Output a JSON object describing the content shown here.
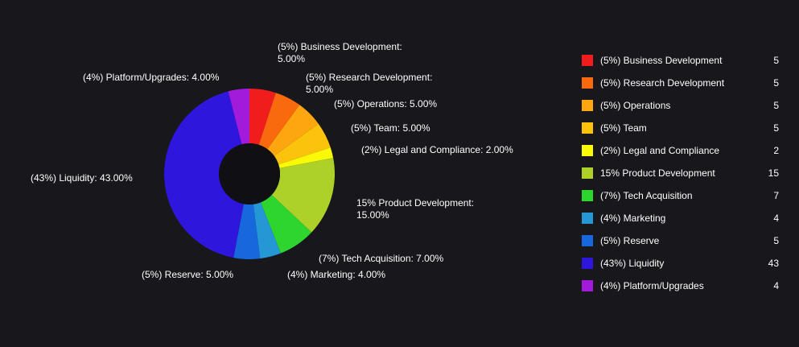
{
  "chart_data": {
    "type": "pie",
    "subtype": "donut",
    "title": "",
    "legend_position": "right",
    "background": "#17171c",
    "hole_color": "#101014",
    "text_color": "#ffffff",
    "categories": [
      "Business Development",
      "Research Development",
      "Operations",
      "Team",
      "Legal and Compliance",
      "Product Development",
      "Tech Acquisition",
      "Marketing",
      "Reserve",
      "Liquidity",
      "Platform/Upgrades"
    ],
    "values": [
      5,
      5,
      5,
      5,
      2,
      15,
      7,
      4,
      5,
      43,
      4
    ],
    "slices": [
      {
        "name": "Business Development",
        "value": 5,
        "color": "#f11d1d",
        "callout": "(5%) Business Development:\n5.00%",
        "legend_label": "(5%) Business Development",
        "legend_value": "5"
      },
      {
        "name": "Research Development",
        "value": 5,
        "color": "#f9690e",
        "callout": "(5%) Research Development:\n5.00%",
        "legend_label": "(5%) Research Development",
        "legend_value": "5"
      },
      {
        "name": "Operations",
        "value": 5,
        "color": "#fea610",
        "callout": "(5%) Operations: 5.00%",
        "legend_label": "(5%) Operations",
        "legend_value": "5"
      },
      {
        "name": "Team",
        "value": 5,
        "color": "#fcc30c",
        "callout": "(5%) Team: 5.00%",
        "legend_label": "(5%) Team",
        "legend_value": "5"
      },
      {
        "name": "Legal and Compliance",
        "value": 2,
        "color": "#f9f908",
        "callout": "(2%) Legal and Compliance: 2.00%",
        "legend_label": "(2%) Legal and Compliance",
        "legend_value": "2"
      },
      {
        "name": "Product Development",
        "value": 15,
        "color": "#aed129",
        "callout": "15% Product Development:\n15.00%",
        "legend_label": "15% Product Development",
        "legend_value": "15"
      },
      {
        "name": "Tech Acquisition",
        "value": 7,
        "color": "#2fd52f",
        "callout": "(7%) Tech Acquisition: 7.00%",
        "legend_label": "(7%) Tech Acquisition",
        "legend_value": "7"
      },
      {
        "name": "Marketing",
        "value": 4,
        "color": "#2597d4",
        "callout": "(4%) Marketing: 4.00%",
        "legend_label": "(4%) Marketing",
        "legend_value": "4"
      },
      {
        "name": "Reserve",
        "value": 5,
        "color": "#1668dc",
        "callout": "(5%) Reserve: 5.00%",
        "legend_label": "(5%) Reserve",
        "legend_value": "5"
      },
      {
        "name": "Liquidity",
        "value": 43,
        "color": "#2e16dc",
        "callout": "(43%) Liquidity: 43.00%",
        "legend_label": "(43%) Liquidity",
        "legend_value": "43"
      },
      {
        "name": "Platform/Upgrades",
        "value": 4,
        "color": "#a21ada",
        "callout": "(4%) Platform/Upgrades: 4.00%",
        "legend_label": "(4%) Platform/Upgrades",
        "legend_value": "4"
      }
    ]
  }
}
